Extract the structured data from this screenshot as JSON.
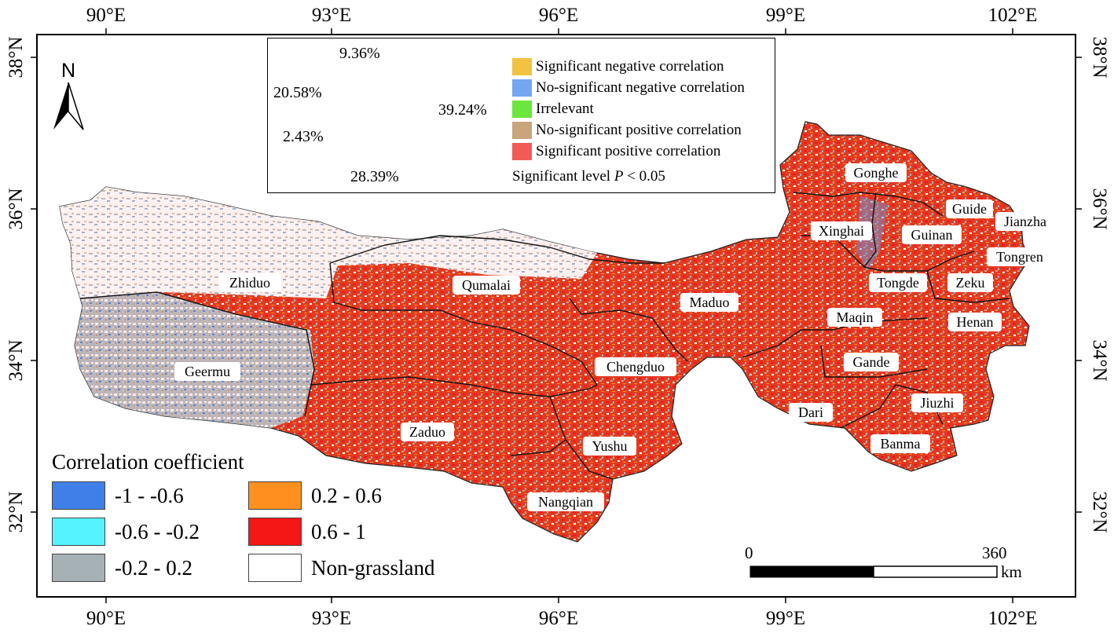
{
  "axes": {
    "lon_labels": [
      "90°E",
      "93°E",
      "96°E",
      "99°E",
      "102°E"
    ],
    "lat_labels": [
      "38°N",
      "36°N",
      "34°N",
      "32°N"
    ]
  },
  "north_arrow": {
    "label": "N",
    "icon": "north-arrow-icon"
  },
  "pie": {
    "slices": [
      {
        "label": "Significant negative correlation",
        "percent": 9.36,
        "percent_label": "9.36%",
        "color": "#F2C240"
      },
      {
        "label": "No-significant negative correlation",
        "percent": 20.58,
        "percent_label": "20.58%",
        "color": "#74A6F2"
      },
      {
        "label": "Irrelevant",
        "percent": 2.43,
        "percent_label": "2.43%",
        "color": "#6BE63C"
      },
      {
        "label": "No-significant positive correlation",
        "percent": 28.39,
        "percent_label": "28.39%",
        "color": "#C9A57C"
      },
      {
        "label": "Significant positive correlation",
        "percent": 39.24,
        "percent_label": "39.24%",
        "color": "#F25A55"
      }
    ],
    "significance_prefix": "Significant level ",
    "significance_var": "P",
    "significance_suffix": " < 0.05"
  },
  "legend": {
    "title": "Correlation coefficient",
    "classes": [
      {
        "label": "-1 - -0.6",
        "color": "#3F7FE8"
      },
      {
        "label": "-0.6 - -0.2",
        "color": "#55F2FF"
      },
      {
        "label": "-0.2 - 0.2",
        "color": "#A6B1B6"
      },
      {
        "label": "0.2 - 0.6",
        "color": "#FF8F1F"
      },
      {
        "label": "0.6 - 1",
        "color": "#F51616"
      },
      {
        "label": "Non-grassland",
        "color": "#FFFFFF"
      }
    ]
  },
  "scale_bar": {
    "start": "0",
    "end": "360",
    "unit": "km"
  },
  "counties": [
    "Gonghe",
    "Guide",
    "Jianzha",
    "Xinghai",
    "Guinan",
    "Tongren",
    "Tongde",
    "Zeku",
    "Maduo",
    "Maqin",
    "Henan",
    "Zhiduo",
    "Qumalai",
    "Geermu",
    "Chengduo",
    "Gande",
    "Jiuzhi",
    "Dari",
    "Zaduo",
    "Yushu",
    "Banma",
    "Nangqian"
  ]
}
